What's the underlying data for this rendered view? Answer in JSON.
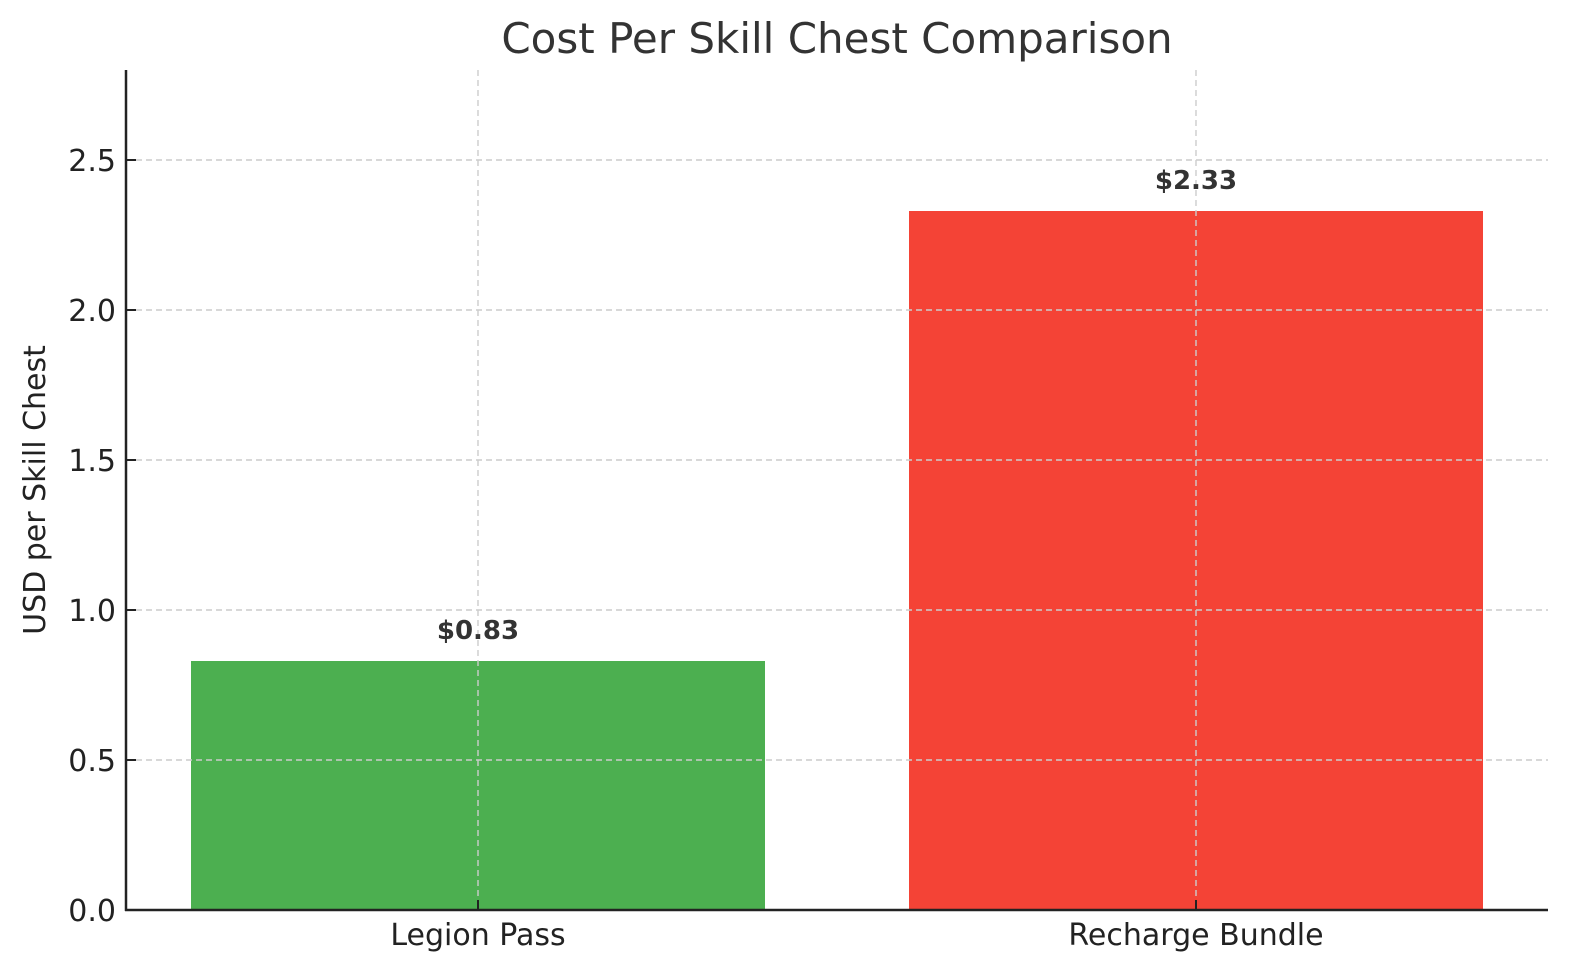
{
  "chart_data": {
    "type": "bar",
    "title": "Cost Per Skill Chest Comparison",
    "xlabel": "",
    "ylabel": "USD per Skill Chest",
    "categories": [
      "Legion Pass",
      "Recharge Bundle"
    ],
    "values": [
      0.83,
      2.33
    ],
    "data_labels": [
      "$0.83",
      "$2.33"
    ],
    "colors": [
      "#4CAF50",
      "#F44336"
    ],
    "ylim": [
      0,
      2.8
    ],
    "yticks": [
      0.0,
      0.5,
      1.0,
      1.5,
      2.0,
      2.5
    ],
    "ytick_labels": [
      "0.0",
      "0.5",
      "1.0",
      "1.5",
      "2.0",
      "2.5"
    ],
    "grid": true,
    "legend": "none"
  }
}
